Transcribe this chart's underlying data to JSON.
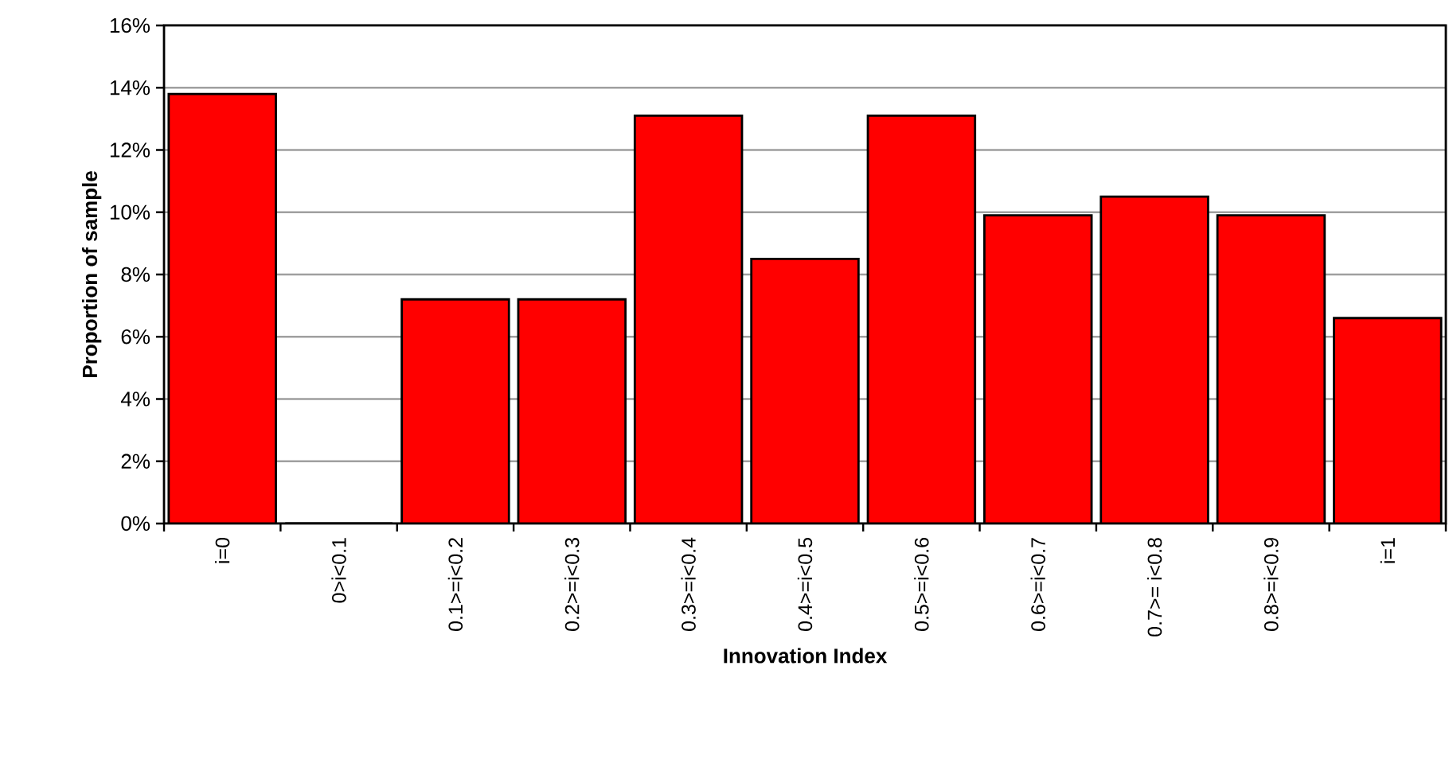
{
  "chart_data": {
    "type": "bar",
    "xlabel": "Innovation Index",
    "ylabel": "Proportion of sample",
    "categories": [
      "i=0",
      "0>i<0.1",
      "0.1>=i<0.2",
      "0.2>=i<0.3",
      "0.3>=i<0.4",
      "0.4>=i<0.5",
      "0.5>=i<0.6",
      "0.6>=i<0.7",
      "0.7>= i<0.8",
      "0.8>=i<0.9",
      "i=1"
    ],
    "values": [
      13.8,
      0,
      7.2,
      7.2,
      13.1,
      8.5,
      13.1,
      9.9,
      10.5,
      9.9,
      6.6
    ],
    "color": "#ff0000",
    "ylim": [
      0,
      16
    ],
    "yticks": [
      {
        "value": 0,
        "label": "0%"
      },
      {
        "value": 2,
        "label": "2%"
      },
      {
        "value": 4,
        "label": "4%"
      },
      {
        "value": 6,
        "label": "6%"
      },
      {
        "value": 8,
        "label": "8%"
      },
      {
        "value": 10,
        "label": "10%"
      },
      {
        "value": 12,
        "label": "12%"
      },
      {
        "value": 14,
        "label": "14%"
      },
      {
        "value": 16,
        "label": "16%"
      }
    ],
    "grid": "y"
  }
}
